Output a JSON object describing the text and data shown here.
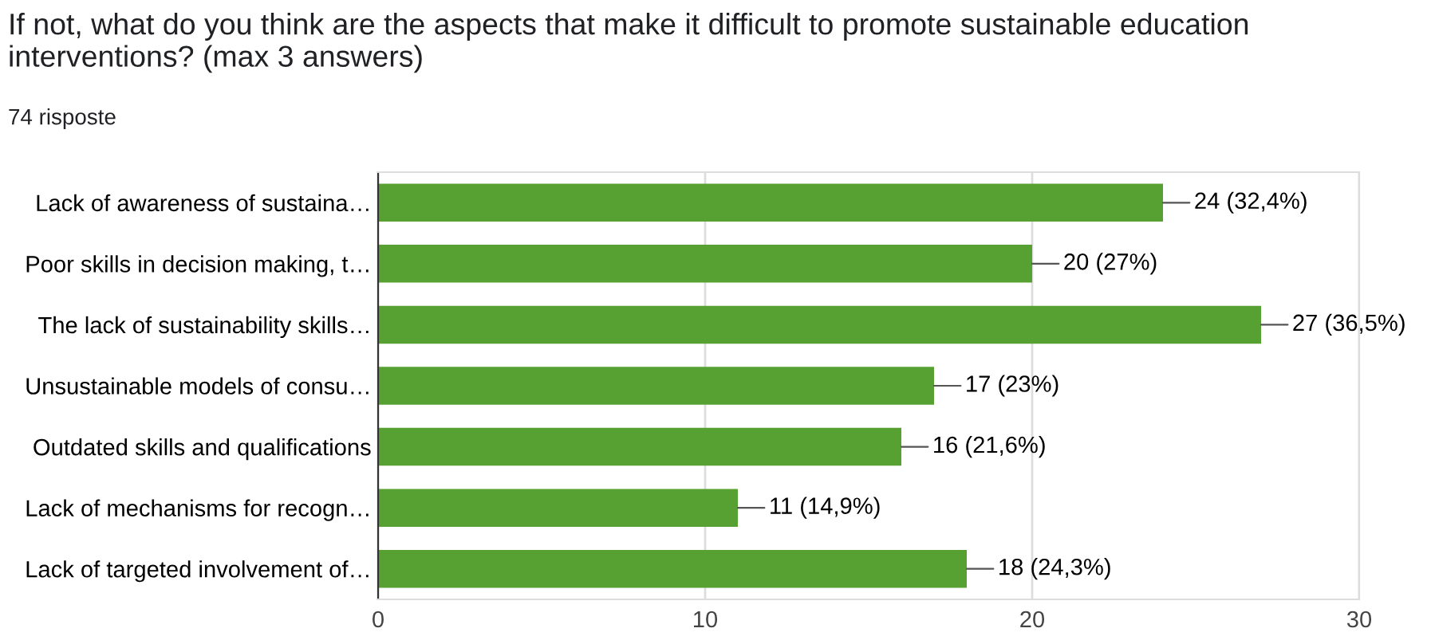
{
  "chart_data": {
    "type": "bar",
    "orientation": "horizontal",
    "title": "If not, what do you think are the aspects that make it difficult to promote sustainable education interventions? (max 3 answers)",
    "subtitle": "74 risposte",
    "categories": [
      "Lack of awareness of sustaina…",
      "Poor skills in decision making, t…",
      "The lack of sustainability skills…",
      "Unsustainable models of consu…",
      "Outdated skills and qualifications",
      "Lack of mechanisms for recogn…",
      "Lack of targeted involvement of…"
    ],
    "values": [
      24,
      20,
      27,
      17,
      16,
      11,
      18
    ],
    "value_labels": [
      "24 (32,4%)",
      "20 (27%)",
      "27 (36,5%)",
      "17 (23%)",
      "16 (21,6%)",
      "11 (14,9%)",
      "18 (24,3%)"
    ],
    "color": "#57a133",
    "xlim": [
      0,
      30
    ],
    "xticks": [
      0,
      10,
      20,
      30
    ],
    "grid": "x",
    "legend": false
  }
}
